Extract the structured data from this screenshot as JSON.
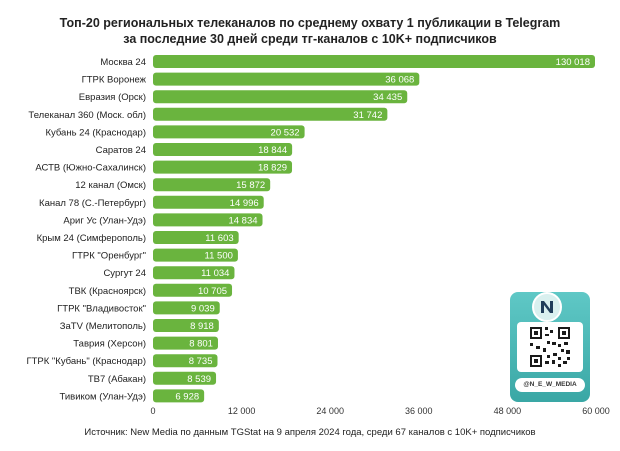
{
  "chart_data": {
    "type": "bar",
    "orientation": "horizontal",
    "title": "Топ-20 региональных телеканалов по среднему охвату 1 публикации в Telegram",
    "subtitle": "за последние 30 дней среди тг-каналов с 10K+ подписчиков",
    "categories": [
      "Москва 24",
      "ГТРК Воронеж",
      "Евразия (Орск)",
      "Телеканал 360 (Моск. обл)",
      "Кубань 24 (Краснодар)",
      "Саратов 24",
      "АСТВ (Южно-Сахалинск)",
      "12 канал (Омск)",
      "Канал 78 (С.-Петербург)",
      "Ариг Ус (Улан-Удэ)",
      "Крым 24 (Симферополь)",
      "ГТРК \"Оренбург\"",
      "Сургут 24",
      "ТВК (Красноярск)",
      "ГТРК \"Владивосток\"",
      "ЗаТV (Мелитополь)",
      "Таврия (Херсон)",
      "ГТРК \"Кубань\" (Краснодар)",
      "ТВ7 (Абакан)",
      "Тивиком (Улан-Удэ)"
    ],
    "values": [
      130018,
      36068,
      34435,
      31742,
      20532,
      18844,
      18829,
      15872,
      14996,
      14834,
      11603,
      11500,
      11034,
      10705,
      9039,
      8918,
      8801,
      8735,
      8539,
      6928
    ],
    "value_labels": [
      "130 018",
      "36 068",
      "34 435",
      "31 742",
      "20 532",
      "18 844",
      "18 829",
      "15 872",
      "14 996",
      "14 834",
      "11 603",
      "11 500",
      "11 034",
      "10 705",
      "9 039",
      "8 918",
      "8 801",
      "8 735",
      "8 539",
      "6 928"
    ],
    "x_ticks": [
      0,
      12000,
      24000,
      36000,
      48000,
      60000
    ],
    "x_tick_labels": [
      "0",
      "12 000",
      "24 000",
      "36 000",
      "48 000",
      "60 000"
    ],
    "xlim": [
      0,
      60000
    ],
    "axis_break": true,
    "grid": false,
    "bar_color": "#6ab43e",
    "xlabel": "",
    "ylabel": ""
  },
  "source_text": "Источник: New Media по данным TGStat на 9 апреля 2024 года, среди 67 каналов с 10K+ подписчиков",
  "branding": {
    "handle": "@N_E_W_MEDIA",
    "logo_letter": "N",
    "card_color": "#4bb8b6"
  }
}
